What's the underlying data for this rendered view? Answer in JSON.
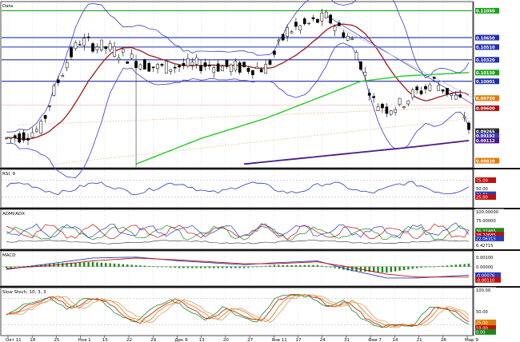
{
  "chart_data": {
    "type": "financial-panels",
    "price_panel": {
      "title": "Data",
      "type": "candlestick",
      "ylim": [
        0.0875,
        0.1115
      ],
      "horizontal_levels": [
        {
          "value": 0.1105,
          "label": "0.11050",
          "color": "#1aa31a"
        },
        {
          "value": 0.1065,
          "label": "0.10650",
          "color": "#1f2fb0"
        },
        {
          "value": 0.1051,
          "label": "0.10510",
          "color": "#1f2fb0"
        },
        {
          "value": 0.1032,
          "label": "0.10320",
          "color": "#1f2fb0"
        },
        {
          "value": 0.10001,
          "label": "0.10001",
          "color": "#1f2fb0"
        }
      ],
      "price_labels": [
        {
          "value": 0.1013,
          "label": "0.10130",
          "color": "#1aa31a"
        },
        {
          "value": 0.0975,
          "label": "0.09750",
          "color": "#e07a00"
        },
        {
          "value": 0.096,
          "label": "0.09600",
          "color": "#b01010"
        },
        {
          "value": 0.0926,
          "label": "0.09265",
          "color": "#2b2b2b"
        },
        {
          "value": 0.0919,
          "label": "0.09192",
          "color": "#3a3ab8"
        },
        {
          "value": 0.0912,
          "label": "0.09112",
          "color": "#4b1a8a"
        },
        {
          "value": 0.0882,
          "label": "0.08820",
          "color": "#e07a00"
        }
      ],
      "series_colors": {
        "bollinger": "#3b3bc8",
        "ma_short": "#a01818",
        "ma_mid": "#22cc22",
        "ma_long": "#4b1a8a",
        "up": "#ffffff",
        "down": "#000000"
      }
    },
    "rsi_panel": {
      "title": "RSI, 9",
      "ylim": [
        0,
        100
      ],
      "levels": [
        75,
        25
      ],
      "labels": [
        {
          "value": 75,
          "label": "75.00",
          "color": "#c01010"
        },
        {
          "value": 50,
          "label": "50.00",
          "color": "#333333"
        },
        {
          "value": 33,
          "label": "32.81",
          "color": "#2b3bb8"
        },
        {
          "value": 25,
          "label": "25.00",
          "color": "#c01010"
        }
      ]
    },
    "adx_panel": {
      "title": "ADMI/ADX",
      "ylim": [
        0,
        100
      ],
      "labels": [
        {
          "value": 100,
          "label": "100.00000",
          "color": "#333333"
        },
        {
          "value": 75,
          "label": "75.00000",
          "color": "#333333"
        },
        {
          "value": 46,
          "label": "36.37485",
          "color": "#1a8a1a"
        },
        {
          "value": 35,
          "label": "28.20685",
          "color": "#c01010"
        },
        {
          "value": 24,
          "label": "22.06315",
          "color": "#2b3bb8"
        },
        {
          "value": 5,
          "label": "6.42715",
          "color": "#333333"
        }
      ]
    },
    "macd_panel": {
      "title": "MACD",
      "ylim": [
        -0.0018,
        0.0014
      ],
      "labels": [
        {
          "value": 0.001,
          "label": "0.00100",
          "color": "#333333"
        },
        {
          "value": 0.0,
          "label": "0.00000",
          "color": "#333333"
        },
        {
          "value": -0.0009,
          "label": "-0.00076",
          "color": "#2b3bb8"
        },
        {
          "value": -0.0014,
          "label": "-0.00110",
          "color": "#c01010"
        }
      ]
    },
    "stoch_panel": {
      "title": "Slow Stoch, 10, 3, 3",
      "ylim": [
        0,
        100
      ],
      "levels": [
        80,
        20
      ],
      "labels": [
        {
          "value": 100,
          "label": "100.00",
          "color": "#333333"
        },
        {
          "value": 50,
          "label": "50.00",
          "color": "#333333"
        },
        {
          "value": 25,
          "label": "25.00",
          "color": "#e07a00"
        },
        {
          "value": 12,
          "label": "10.00",
          "color": "#c01010"
        },
        {
          "value": 3,
          "label": "0.00",
          "color": "#1a8a1a"
        }
      ]
    },
    "x_ticks": [
      "Окт 11",
      "18",
      "25",
      "Ноя 1",
      "15",
      "22",
      "29",
      "Дек 6",
      "13",
      "20",
      "27",
      "Янв 11",
      "17",
      "24",
      "31",
      "Фев 7",
      "14",
      "21",
      "28",
      "Мар 9"
    ]
  }
}
